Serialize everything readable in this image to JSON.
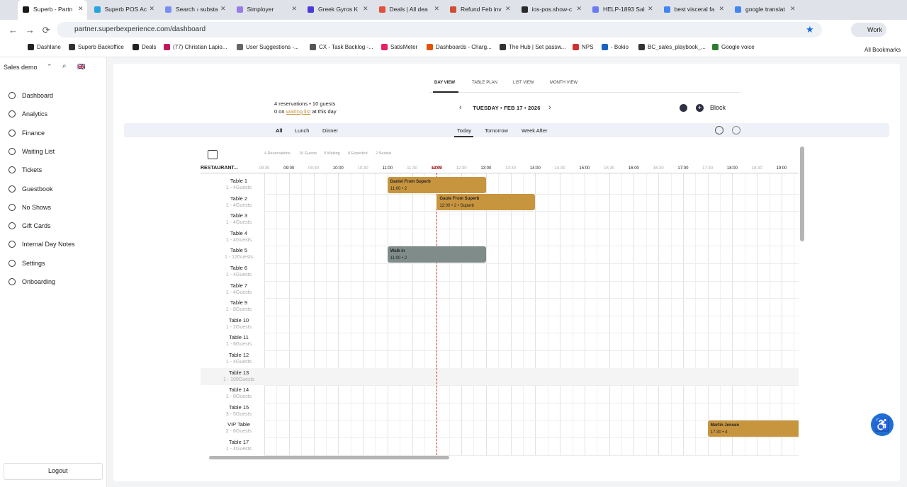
{
  "browser": {
    "tabs": [
      "Superb - Partn",
      "Superb POS Ac",
      "Search › substa",
      "Simployer",
      "Greek Gyros K",
      "Deals | All dea",
      "Refund Feb inv",
      "ios-pos.show-c",
      "HELP-1893 Sal",
      "best visceral fa",
      "google translat"
    ],
    "url": "partner.superbexperience.com/dashboard",
    "profile": "Work",
    "bookmarks": [
      "Dashlane",
      "Superb Backoffice",
      "Deals",
      "(77) Christian Lapio...",
      "User Suggestions -...",
      "CX - Task Backlog -...",
      "SatisMeter",
      "Dashboards - Charg...",
      "The Hub | Set passw...",
      "NPS",
      "- Bokio",
      "BC_sales_playbook_...",
      "Google voice"
    ],
    "all_bookmarks": "All Bookmarks"
  },
  "sidebar": {
    "org": "Sales demo",
    "lang": "🇬🇧",
    "items": [
      "Dashboard",
      "Analytics",
      "Finance",
      "Waiting List",
      "Tickets",
      "Guestbook",
      "No Shows",
      "Gift Cards",
      "Internal Day Notes",
      "Settings",
      "Onboarding"
    ],
    "logout": "Logout"
  },
  "header": {
    "views": [
      "DAY VIEW",
      "TABLE PLAN",
      "LIST VIEW",
      "MONTH VIEW"
    ],
    "summary": "4 reservations • 10 guests",
    "waiting_prefix": "0 on",
    "waiting_link": "waiting list",
    "waiting_suffix": "at this day",
    "date": "TUESDAY • FEB 17 • 2026",
    "block": "Block"
  },
  "filters": {
    "services": [
      "All",
      "Lunch",
      "Dinner"
    ],
    "days": [
      "Today",
      "Tomorrow",
      "Week After"
    ]
  },
  "grid": {
    "stats": [
      "4 Reservations",
      "10 Guests",
      "0 Waiting",
      "8 Expected",
      "2 Seated"
    ],
    "column_header": "RESTAURANT...",
    "now": "NOW",
    "times": [
      "08:30",
      "09:00",
      "09:30",
      "10:00",
      "10:30",
      "11:00",
      "11:30",
      "12:00",
      "12:30",
      "13:00",
      "13:30",
      "14:00",
      "14:30",
      "15:00",
      "15:30",
      "16:00",
      "16:30",
      "17:00",
      "17:30",
      "18:00",
      "18:30",
      "19:00"
    ],
    "tables": [
      [
        "Table 1",
        "1 - 4Guests"
      ],
      [
        "Table 2",
        "1 - 4Guests"
      ],
      [
        "Table 3",
        "1 - 4Guests"
      ],
      [
        "Table 4",
        "1 - 4Guests"
      ],
      [
        "Table 5",
        "1 - 12Guests"
      ],
      [
        "Table 6",
        "1 - 4Guests"
      ],
      [
        "Table 7",
        "1 - 4Guests"
      ],
      [
        "Table 9",
        "1 - 8Guests"
      ],
      [
        "Table 10",
        "1 - 2Guests"
      ],
      [
        "Table 11",
        "1 - 6Guests"
      ],
      [
        "Table 12",
        "1 - 4Guests"
      ],
      [
        "Table 13",
        "1 - 100Guests"
      ],
      [
        "Table 14",
        "1 - 8Guests"
      ],
      [
        "Table 15",
        "3 - 5Guests"
      ],
      [
        "VIP Table",
        "2 - 6Guests"
      ],
      [
        "Table 17",
        "1 - 4Guests"
      ]
    ],
    "reservations": [
      {
        "name": "Daniel From Superb",
        "detail": "11:00 • 2"
      },
      {
        "name": "Gaute From Superb",
        "detail": "12:00 • 2 • Superb"
      },
      {
        "name": "Walk in",
        "detail": "11:00 • 2"
      },
      {
        "name": "Martin Jensen",
        "detail": "17:30 • 4"
      }
    ]
  }
}
